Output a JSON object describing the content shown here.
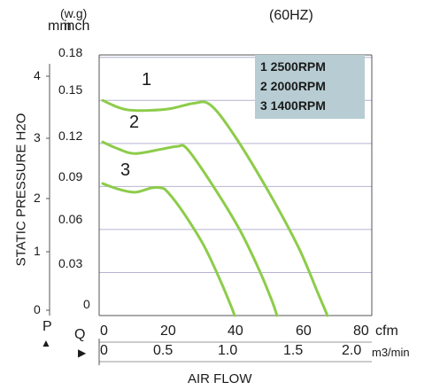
{
  "header": {
    "unit_mm": "mm",
    "unit_wg": "(w.g)",
    "unit_inch": "inch",
    "frequency": "(60HZ)"
  },
  "axis_labels": {
    "pressure_side": "STATIC PRESSURE H2O",
    "p_symbol": "P",
    "q_symbol": "Q",
    "cfm_unit": "cfm",
    "m3_unit": "m3/min",
    "airflow": "AIR FLOW",
    "up_arrow": "▲",
    "right_arrow": "▶"
  },
  "ticks": {
    "inch": [
      "0.18",
      "0.15",
      "0.12",
      "0.09",
      "0.06",
      "0.03",
      "0"
    ],
    "mm": [
      "4",
      "3",
      "2",
      "1",
      "0"
    ],
    "cfm": [
      "0",
      "20",
      "40",
      "60",
      "80"
    ],
    "m3": [
      "0",
      "0.5",
      "1.0",
      "1.5",
      "2.0"
    ]
  },
  "legend": {
    "items": [
      "1 2500RPM",
      "2 2000RPM",
      "3 1400RPM"
    ]
  },
  "curve_labels": [
    "1",
    "2",
    "3"
  ],
  "colors": {
    "curve": "#8dcc4a",
    "grid": "#b4b4d2",
    "frame": "#555555",
    "legend_bg": "#b7cdd3"
  },
  "chart_data": {
    "type": "line",
    "x_unit": "cfm",
    "y_unit": "inch H2O",
    "xlim": [
      0,
      80
    ],
    "ylim": [
      0,
      0.18
    ],
    "series": [
      {
        "name": "1 2500RPM",
        "x": [
          0,
          5,
          10,
          20,
          28,
          33,
          40,
          50,
          60,
          66,
          69
        ],
        "y": [
          0.15,
          0.145,
          0.143,
          0.144,
          0.148,
          0.147,
          0.127,
          0.09,
          0.048,
          0.016,
          0
        ]
      },
      {
        "name": "2 2000RPM",
        "x": [
          0,
          5,
          10,
          18,
          23,
          26,
          34,
          42,
          48,
          52,
          53.5
        ],
        "y": [
          0.121,
          0.116,
          0.113,
          0.116,
          0.118,
          0.116,
          0.09,
          0.06,
          0.032,
          0.01,
          0
        ]
      },
      {
        "name": "3 1400RPM",
        "x": [
          0,
          5,
          10,
          15,
          18,
          20,
          25,
          31,
          36,
          39.5,
          40.5
        ],
        "y": [
          0.092,
          0.088,
          0.086,
          0.089,
          0.089,
          0.086,
          0.071,
          0.049,
          0.025,
          0.006,
          0
        ]
      }
    ]
  }
}
